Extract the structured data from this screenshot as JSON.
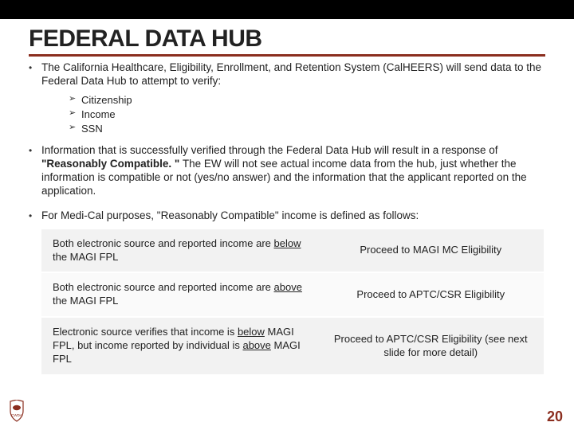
{
  "colors": {
    "accent": "#8b2e1f",
    "topbar": "#000000",
    "rowAlt": "#f2f2f2",
    "rowPlain": "#fafafa",
    "text": "#222222"
  },
  "title": "FEDERAL DATA HUB",
  "bullets": [
    {
      "prefix": "The California Healthcare, Eligibility, Enrollment, and Retention System (CalHEERS) will send data to the Federal Data Hub to attempt to verify:",
      "sub": [
        "Citizenship",
        "Income",
        "SSN"
      ]
    },
    {
      "html": "Information that is successfully verified through the Federal Data Hub will result in a response of <b>\"Reasonably Compatible. \"</b> The EW will not see actual income data from the hub, just whether the information is compatible or not (yes/no answer) and the information that the applicant reported on the application."
    },
    {
      "prefix": "For Medi-Cal purposes, \"Reasonably Compatible\" income is defined as follows:"
    }
  ],
  "table": {
    "columns": [
      "condition",
      "action"
    ],
    "rows": [
      {
        "left_html": "Both electronic source and reported income are <span class=\"u\">below</span> the MAGI FPL",
        "right": "Proceed to MAGI MC Eligibility",
        "bg": "alt"
      },
      {
        "left_html": "Both electronic source and reported income are <span class=\"u\">above</span> the MAGI FPL",
        "right": "Proceed to APTC/CSR Eligibility",
        "bg": "plain"
      },
      {
        "left_html": "Electronic source verifies that income is <span class=\"u\">below</span> MAGI FPL, but income reported by individual is <span class=\"u\">above</span> MAGI FPL",
        "right": "Proceed to APTC/CSR Eligibility (see next slide for more detail)",
        "bg": "alt"
      }
    ]
  },
  "pageNumber": "20",
  "logo": {
    "label": "CWDA",
    "shape": "bear-california",
    "color": "#8b2e1f"
  }
}
